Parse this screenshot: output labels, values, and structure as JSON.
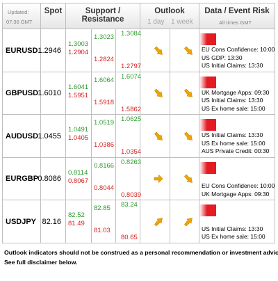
{
  "header": {
    "updated_label": "Updated:",
    "updated_time": "07:36 GMT",
    "spot": "Spot",
    "support_resistance": "Support / Resistance",
    "outlook": "Outlook",
    "day1": "1 day",
    "week1": "1 week",
    "data_event_risk": "Data / Event Risk",
    "times_note": "All times GMT"
  },
  "rows": [
    {
      "pair": "EURUSD",
      "spot": "1.2946",
      "c1_top": "1.3003",
      "c1_bot": "1.2904",
      "c2_top": "1.3023",
      "c2_bot": "1.2824",
      "c3_top": "1.3084",
      "c3_bot": "1.2797",
      "outlook_1day": "down-right",
      "outlook_1week": "down-right",
      "risk_level": 0.5,
      "events": [
        "EU Cons Confidence: 10:00",
        "US GDP: 13:30",
        "US Initial Claims: 13:30"
      ]
    },
    {
      "pair": "GBPUSD",
      "spot": "1.6010",
      "c1_top": "1.6041",
      "c1_bot": "1.5951",
      "c2_top": "1.6064",
      "c2_bot": "1.5918",
      "c3_top": "1.6074",
      "c3_bot": "1.5862",
      "outlook_1day": "down-right",
      "outlook_1week": "down-right",
      "risk_level": 0.5,
      "events": [
        "UK Mortgage Apps: 09:30",
        "US Initial Claims: 13:30",
        "US Ex home sale: 15:00"
      ]
    },
    {
      "pair": "AUDUSD",
      "spot": "1.0455",
      "c1_top": "1.0491",
      "c1_bot": "1.0405",
      "c2_top": "1.0519",
      "c2_bot": "1.0386",
      "c3_top": "1.0625",
      "c3_bot": "1.0354",
      "outlook_1day": "down-right",
      "outlook_1week": "down-right",
      "risk_level": 0.5,
      "events": [
        "US Initial Claims: 13:30",
        "US Ex home sale: 15:00",
        "AUS Private Credit: 00:30"
      ]
    },
    {
      "pair": "EURGBP",
      "spot": "0.8086",
      "c1_top": "0.8114",
      "c1_bot": "0.8067",
      "c2_top": "0.8166",
      "c2_bot": "0.8044",
      "c3_top": "0.8263",
      "c3_bot": "0.8039",
      "outlook_1day": "right",
      "outlook_1week": "down-right",
      "risk_level": 0.5,
      "events": [
        "EU Cons Confidence: 10:00",
        "UK Mortgage Apps: 09:30"
      ]
    },
    {
      "pair": "USDJPY",
      "spot": "82.16",
      "c1_top": "82.52",
      "c1_bot": "81.49",
      "c2_top": "82.85",
      "c2_bot": "81.03",
      "c3_top": "83.24",
      "c3_bot": "80.65",
      "outlook_1day": "up-right",
      "outlook_1week": "up-right",
      "risk_level": 0.5,
      "events": [
        "US Initial Claims: 13:30",
        "US Ex home sale: 15:00"
      ]
    }
  ],
  "footer": {
    "line1": "Outlook indicators should not be construed as a personal recommendation or investment advice.",
    "line2": "See full disclaimer below."
  },
  "colors": {
    "support": "#2e9a2e",
    "resistance": "#d42020",
    "arrow": "#f0a500",
    "risk": "#e41b23"
  }
}
